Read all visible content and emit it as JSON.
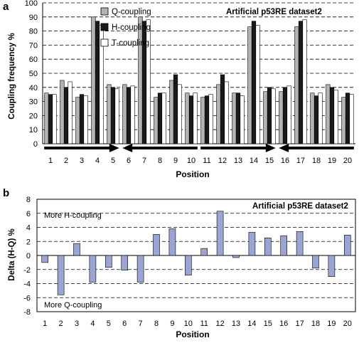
{
  "colors": {
    "q_fill": "#b3b3b3",
    "h_fill": "#1a1a1a",
    "t_fill": "#ffffff",
    "delta_fill": "#9aa5d6",
    "stroke": "#000000"
  },
  "chart_data": [
    {
      "panel": "a",
      "type": "bar",
      "annotation": "Artificial p53RE dataset2",
      "xlabel": "Position",
      "ylabel": "Coupling frequency %",
      "ylim": [
        0,
        100
      ],
      "yticks": [
        0,
        10,
        20,
        30,
        40,
        50,
        60,
        70,
        80,
        90,
        100
      ],
      "grid": "horizontal dashed",
      "legend_position": "top-left",
      "categories": [
        "1",
        "2",
        "3",
        "4",
        "5",
        "6",
        "7",
        "8",
        "9",
        "10",
        "11",
        "12",
        "13",
        "14",
        "15",
        "16",
        "17",
        "18",
        "19",
        "20"
      ],
      "series": [
        {
          "name": "Q-coupling",
          "values": [
            36,
            45,
            33,
            90,
            42,
            42,
            90,
            33,
            45,
            36,
            33,
            42,
            36,
            83,
            37,
            37,
            83,
            36,
            42,
            33
          ]
        },
        {
          "name": "H-coupling",
          "values": [
            35,
            40,
            35,
            87,
            40,
            40,
            87,
            36,
            49,
            34,
            34,
            49,
            36,
            87,
            40,
            40,
            87,
            34,
            40,
            36
          ]
        },
        {
          "name": "T-coupling",
          "values": [
            35,
            44,
            34,
            84,
            39,
            41,
            88,
            36,
            42,
            36,
            35,
            44,
            34,
            84,
            39,
            41,
            88,
            36,
            38,
            35
          ]
        }
      ],
      "arrows": [
        {
          "from": 0.6,
          "to": 5.4,
          "direction": "right"
        },
        {
          "from": 5.6,
          "to": 10.4,
          "direction": "left"
        },
        {
          "from": 10.6,
          "to": 15.4,
          "direction": "right"
        },
        {
          "from": 15.6,
          "to": 20.4,
          "direction": "left"
        }
      ]
    },
    {
      "panel": "b",
      "type": "bar",
      "annotation": "Artificial p53RE dataset2",
      "xlabel": "Position",
      "ylabel": "Delta (H-Q) %",
      "ylim": [
        -8,
        8
      ],
      "yticks": [
        -8,
        -6,
        -4,
        -2,
        0,
        2,
        4,
        6,
        8
      ],
      "grid": "horizontal dashed",
      "text_top": "More H-coupling",
      "text_bottom": "More Q-coupling",
      "categories": [
        "1",
        "2",
        "3",
        "4",
        "5",
        "6",
        "7",
        "8",
        "9",
        "10",
        "11",
        "12",
        "13",
        "14",
        "15",
        "16",
        "17",
        "18",
        "19",
        "20"
      ],
      "values": [
        -1.0,
        -5.6,
        1.7,
        -3.8,
        -1.7,
        -2.1,
        -3.8,
        3.0,
        3.8,
        -2.8,
        1.0,
        6.3,
        -0.3,
        3.3,
        2.5,
        2.8,
        3.4,
        -1.8,
        -3.0,
        2.9
      ]
    }
  ]
}
